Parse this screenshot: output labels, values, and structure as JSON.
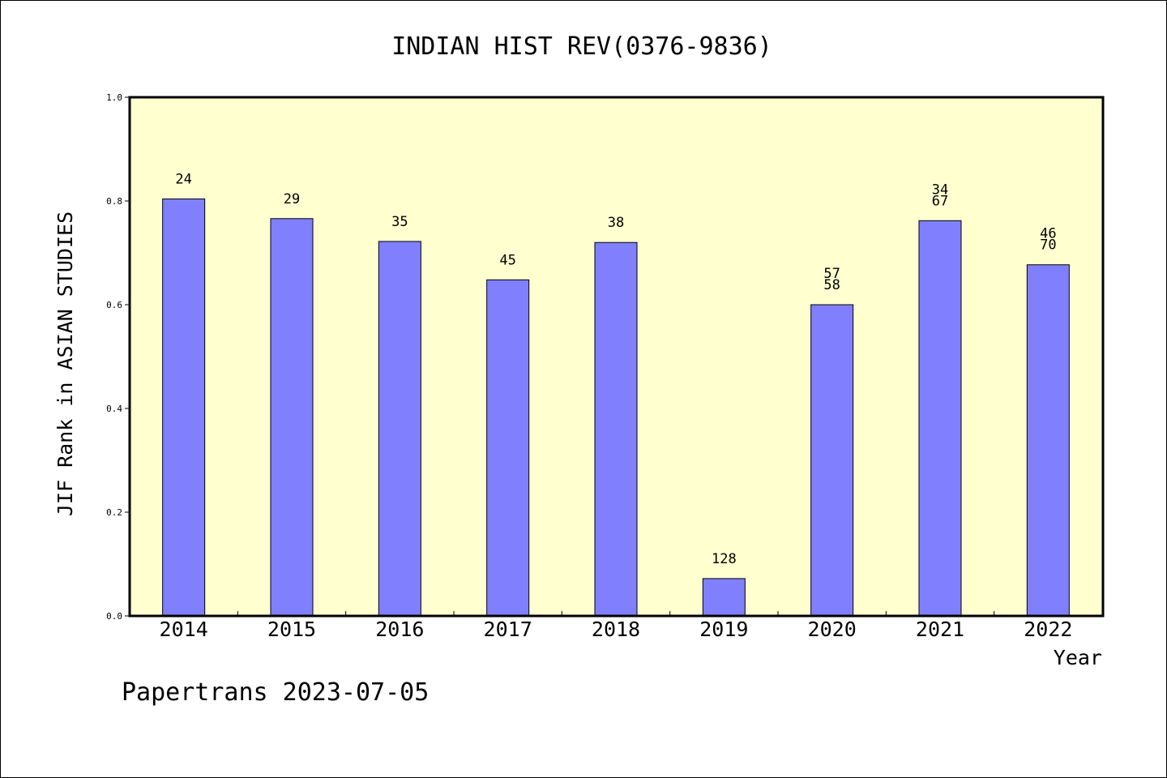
{
  "chart_data": {
    "type": "bar",
    "title": "INDIAN HIST REV(0376-9836)",
    "xlabel": "Year",
    "ylabel": "JIF Rank in ASIAN STUDIES",
    "ylim": [
      0,
      1.0
    ],
    "yticks": [
      "0.0",
      "0.2",
      "0.4",
      "0.6",
      "0.8",
      "1.0"
    ],
    "categories": [
      "2014",
      "2015",
      "2016",
      "2017",
      "2018",
      "2019",
      "2020",
      "2021",
      "2022"
    ],
    "values": [
      0.804,
      0.766,
      0.722,
      0.648,
      0.72,
      0.072,
      0.6,
      0.762,
      0.677
    ],
    "bar_labels": [
      [
        "24"
      ],
      [
        "29"
      ],
      [
        "35"
      ],
      [
        "45"
      ],
      [
        "38"
      ],
      [
        "128"
      ],
      [
        "57",
        "58"
      ],
      [
        "34",
        "67"
      ],
      [
        "46",
        "70"
      ]
    ],
    "grid": false,
    "colors": {
      "bar": "#8080ff",
      "plot_background": "#ffffd0",
      "axis": "#000000"
    }
  },
  "footer": {
    "watermark": "Papertrans 2023-07-05"
  }
}
